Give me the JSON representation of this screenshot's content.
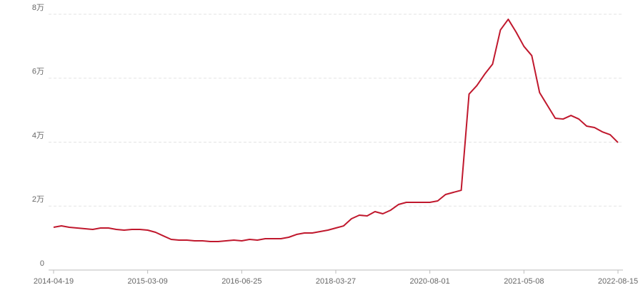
{
  "chart_data": {
    "type": "line",
    "categories": [
      "2014-04-19",
      null,
      null,
      null,
      null,
      null,
      null,
      null,
      null,
      null,
      null,
      null,
      "2015-03-09",
      null,
      null,
      null,
      null,
      null,
      null,
      null,
      null,
      null,
      null,
      null,
      "2016-06-25",
      null,
      null,
      null,
      null,
      null,
      null,
      null,
      null,
      null,
      null,
      null,
      "2018-03-27",
      null,
      null,
      null,
      null,
      null,
      null,
      null,
      null,
      null,
      null,
      null,
      "2020-08-01",
      null,
      null,
      null,
      null,
      null,
      null,
      null,
      null,
      null,
      null,
      null,
      "2021-05-08",
      null,
      null,
      null,
      null,
      null,
      null,
      null,
      null,
      null,
      null,
      null,
      "2022-08-15"
    ],
    "values": [
      13370,
      13810,
      13370,
      13150,
      12920,
      12700,
      13150,
      13150,
      12700,
      12480,
      12700,
      12700,
      12480,
      11810,
      10690,
      9580,
      9360,
      9360,
      9130,
      9130,
      8910,
      8910,
      9130,
      9360,
      9130,
      9580,
      9360,
      9800,
      9800,
      9800,
      10250,
      11140,
      11590,
      11590,
      12030,
      12480,
      13150,
      13810,
      16040,
      17160,
      16930,
      18270,
      17600,
      18720,
      20500,
      21170,
      21170,
      21170,
      21170,
      21610,
      23620,
      24290,
      24950,
      55030,
      57710,
      61270,
      64390,
      75080,
      78430,
      74420,
      69960,
      67060,
      55480,
      51470,
      47460,
      47230,
      48350,
      47230,
      45010,
      44560,
      43220,
      42330,
      39880
    ],
    "color": "#c0182d",
    "ylim": [
      0,
      80000
    ],
    "yticks": [
      0,
      {
        "value": 20000,
        "label": "2万"
      },
      {
        "value": 40000,
        "label": "4万"
      },
      {
        "value": 60000,
        "label": "6万"
      },
      {
        "value": 80000,
        "label": "8万"
      }
    ],
    "grid": true
  }
}
